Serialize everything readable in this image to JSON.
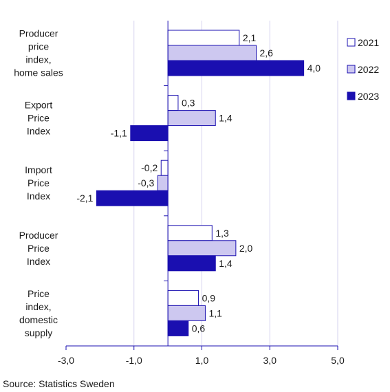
{
  "chart_data": {
    "type": "bar",
    "orientation": "horizontal",
    "categories": [
      [
        "Producer",
        "price",
        "index,",
        "home sales"
      ],
      [
        "Export",
        "Price",
        "Index"
      ],
      [
        "Import",
        "Price",
        "Index"
      ],
      [
        "Producer",
        "Price",
        "Index"
      ],
      [
        "Price",
        "index,",
        "domestic",
        "supply"
      ]
    ],
    "series": [
      {
        "name": "2021",
        "color": "#ffffff",
        "values": [
          2.1,
          0.3,
          -0.2,
          1.3,
          0.9
        ],
        "labels": [
          "2,1",
          "0,3",
          "-0,2",
          "1,3",
          "0,9"
        ]
      },
      {
        "name": "2022",
        "color": "#cdc8f0",
        "values": [
          2.6,
          1.4,
          -0.3,
          2.0,
          1.1
        ],
        "labels": [
          "2,6",
          "1,4",
          "-0,3",
          "2,0",
          "1,1"
        ]
      },
      {
        "name": "2023",
        "color": "#1a0fb0",
        "values": [
          4.0,
          -1.1,
          -2.1,
          1.4,
          0.6
        ],
        "labels": [
          "4,0",
          "-1,1",
          "-2,1",
          "1,4",
          "0,6"
        ]
      }
    ],
    "xlim": [
      -3.0,
      5.0
    ],
    "xticks": [
      -3,
      -1,
      1,
      3,
      5
    ],
    "xtick_labels": [
      "-3,0",
      "-1,0",
      "1,0",
      "3,0",
      "5,0"
    ],
    "grid": true,
    "legend_position": "right",
    "title": "",
    "xlabel": "",
    "ylabel": ""
  },
  "source": "Source: Statistics Sweden"
}
